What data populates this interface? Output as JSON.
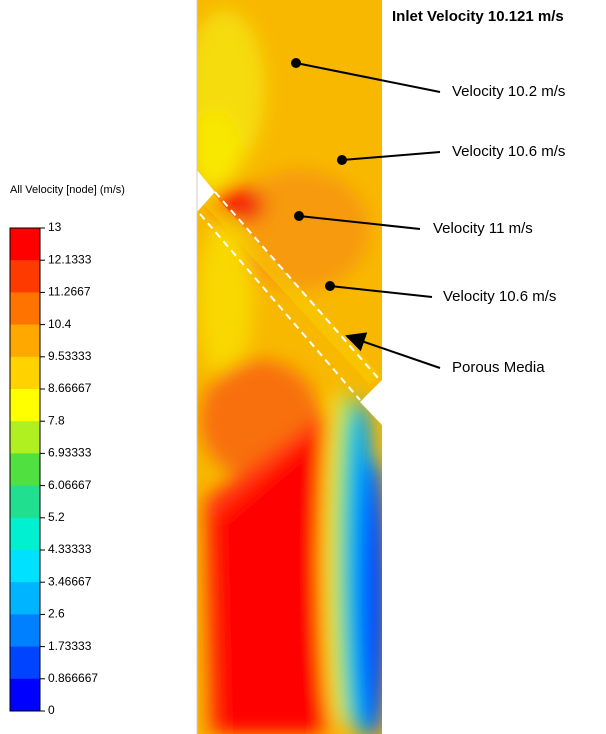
{
  "title": "Inlet Velocity 10.121 m/s",
  "legend": {
    "title": "All Velocity [node] (m/s)",
    "labels": [
      "13",
      "12.1333",
      "11.2667",
      "10.4",
      "9.53333",
      "8.66667",
      "7.8",
      "6.93333",
      "6.06667",
      "5.2",
      "4.33333",
      "3.46667",
      "2.6",
      "1.73333",
      "0.866667",
      "0"
    ]
  },
  "annotations": [
    "Velocity 10.2 m/s",
    "Velocity 10.6 m/s",
    "Velocity 11 m/s",
    "Velocity 10.6 m/s",
    "Porous Media"
  ]
}
